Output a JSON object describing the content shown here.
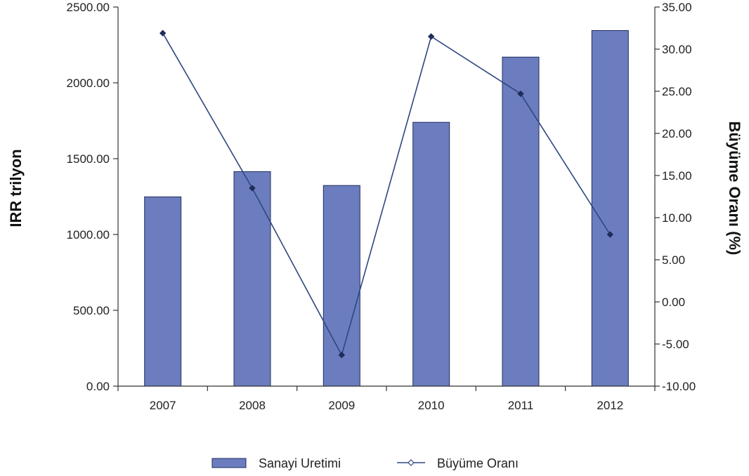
{
  "chart_data": {
    "type": "bar",
    "categories": [
      "2007",
      "2008",
      "2009",
      "2010",
      "2011",
      "2012"
    ],
    "series": [
      {
        "name": "Sanayi Uretimi",
        "type": "bar",
        "axis": "left",
        "color": "#6b7dbf",
        "values": [
          1248,
          1415,
          1323,
          1740,
          2170,
          2345
        ]
      },
      {
        "name": "Büyüme Oranı",
        "type": "line",
        "axis": "right",
        "color": "#2e4780",
        "values": [
          31.9,
          13.5,
          -6.3,
          31.5,
          24.7,
          8.0
        ]
      }
    ],
    "ylabel": "IRR trilyon",
    "y2label": "Büyüme Oranı (%)",
    "ylim": [
      0,
      2500
    ],
    "y2lim": [
      -10,
      35
    ],
    "yticks": [
      "0.00",
      "500.00",
      "1000.00",
      "1500.00",
      "2000.00",
      "2500.00"
    ],
    "y2ticks": [
      "-10.00",
      "-5.00",
      "0.00",
      "5.00",
      "10.00",
      "15.00",
      "20.00",
      "25.00",
      "30.00",
      "35.00"
    ],
    "legend_position": "bottom",
    "grid": false
  }
}
